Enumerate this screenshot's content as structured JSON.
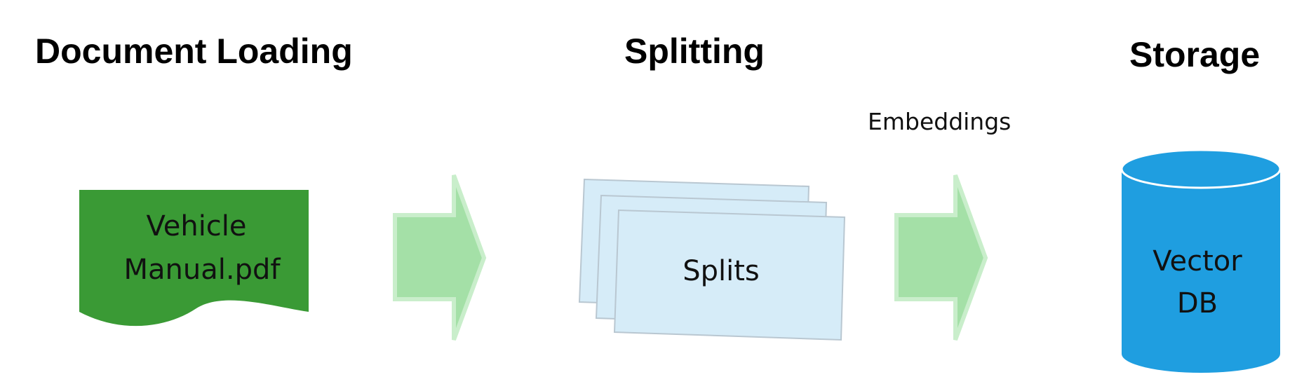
{
  "headings": {
    "loading": "Document Loading",
    "splitting": "Splitting",
    "storage": "Storage"
  },
  "document": {
    "line1": "Vehicle",
    "line2": "Manual.pdf",
    "color": "#3a9a35"
  },
  "splits": {
    "label": "Splits",
    "color": "#d6ecf8"
  },
  "embeddings": {
    "label": "Embeddings"
  },
  "vector_db": {
    "line1": "Vector",
    "line2": "DB",
    "color": "#1f9ee0"
  },
  "arrows": {
    "fill": "#a4e0a7",
    "outline": "#c9eecb"
  }
}
